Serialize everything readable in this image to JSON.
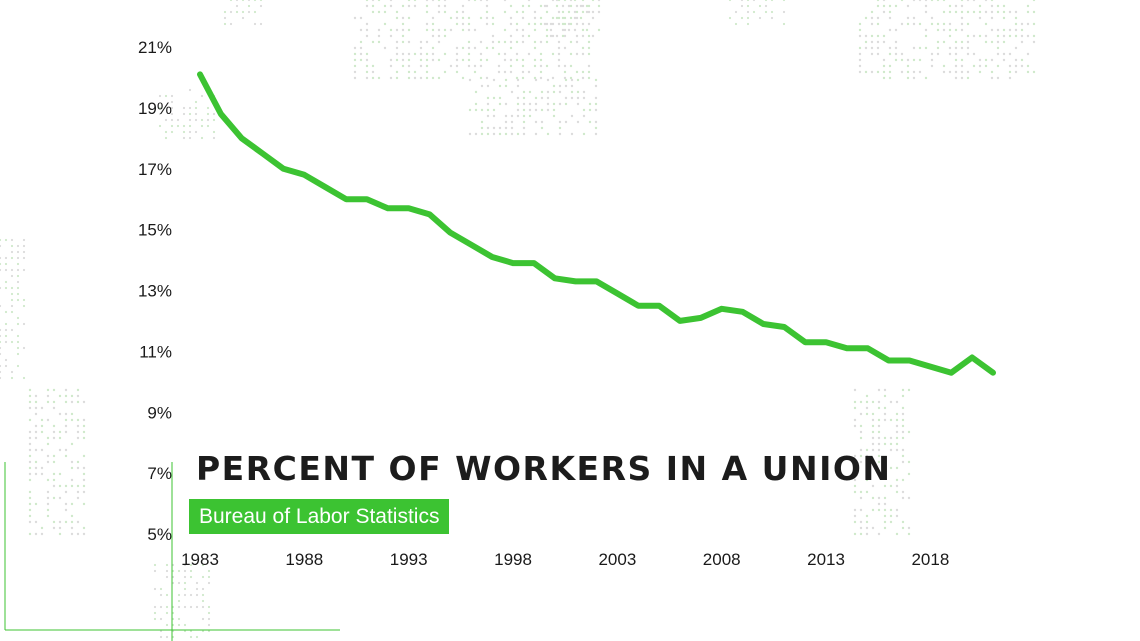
{
  "chart_data": {
    "type": "line",
    "title": "PERCENT OF WORKERS IN A UNION",
    "subtitle": "Bureau of Labor Statistics",
    "x": [
      1983,
      1984,
      1985,
      1986,
      1987,
      1988,
      1989,
      1990,
      1991,
      1992,
      1993,
      1994,
      1995,
      1996,
      1997,
      1998,
      1999,
      2000,
      2001,
      2002,
      2003,
      2004,
      2005,
      2006,
      2007,
      2008,
      2009,
      2010,
      2011,
      2012,
      2013,
      2014,
      2015,
      2016,
      2017,
      2018,
      2019,
      2020,
      2021
    ],
    "series": [
      {
        "values": [
          20.1,
          18.8,
          18.0,
          17.5,
          17.0,
          16.8,
          16.4,
          16.0,
          16.0,
          15.7,
          15.7,
          15.5,
          14.9,
          14.5,
          14.1,
          13.9,
          13.9,
          13.4,
          13.3,
          13.3,
          12.9,
          12.5,
          12.5,
          12.0,
          12.1,
          12.4,
          12.3,
          11.9,
          11.8,
          11.3,
          11.3,
          11.1,
          11.1,
          10.7,
          10.7,
          10.5,
          10.3,
          10.8,
          10.3
        ]
      }
    ],
    "x_ticks": [
      "1983",
      "1988",
      "1993",
      "1998",
      "2003",
      "2008",
      "2013",
      "2018"
    ],
    "y_ticks": [
      "21%",
      "19%",
      "17%",
      "15%",
      "13%",
      "11%",
      "9%",
      "7%",
      "5%"
    ],
    "ylim": [
      5,
      21
    ],
    "xlim": [
      1983,
      2021
    ],
    "grid": false,
    "line_color": "#3cc332"
  }
}
